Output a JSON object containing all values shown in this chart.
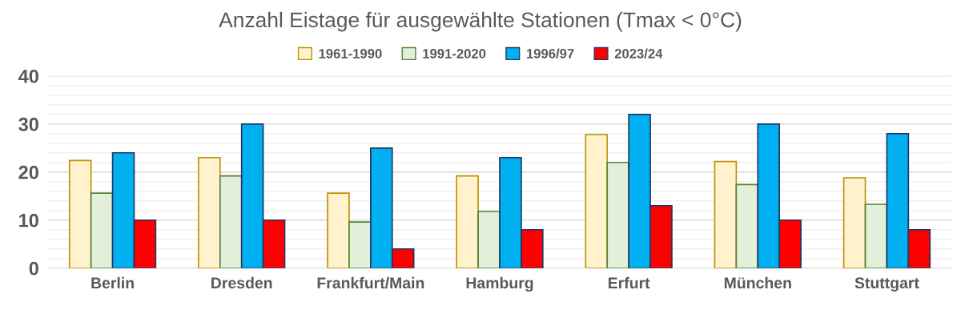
{
  "chart_data": {
    "type": "bar",
    "title": "Anzahl Eistage für ausgewählte Stationen (Tmax < 0°C)",
    "categories": [
      "Berlin",
      "Dresden",
      "Frankfurt/Main",
      "Hamburg",
      "Erfurt",
      "München",
      "Stuttgart"
    ],
    "series": [
      {
        "name": "1961-1990",
        "color": "#fff2cc",
        "values": [
          22.4,
          23.0,
          15.6,
          19.2,
          27.8,
          22.2,
          18.8
        ]
      },
      {
        "name": "1991-2020",
        "color": "#e2efda",
        "values": [
          15.6,
          19.2,
          9.6,
          11.8,
          22.0,
          17.4,
          13.3
        ]
      },
      {
        "name": "1996/97",
        "color": "#00b0f0",
        "values": [
          24,
          30,
          25,
          23,
          32,
          30,
          28
        ]
      },
      {
        "name": "2023/24",
        "color": "#ff0000",
        "values": [
          10,
          10,
          4,
          8,
          13,
          10,
          8
        ]
      }
    ],
    "ylim": [
      0,
      40
    ],
    "yticks": [
      0,
      {
        "value": 2,
        "label": null
      },
      {
        "value": 4,
        "label": null
      },
      {
        "value": 6,
        "label": null
      },
      {
        "value": 8,
        "label": null
      },
      10,
      {
        "value": 12,
        "label": null
      },
      {
        "value": 14,
        "label": null
      },
      {
        "value": 16,
        "label": null
      },
      {
        "value": 18,
        "label": null
      },
      20,
      {
        "value": 22,
        "label": null
      },
      {
        "value": 24,
        "label": null
      },
      {
        "value": 26,
        "label": null
      },
      {
        "value": 28,
        "label": null
      },
      30,
      {
        "value": 32,
        "label": null
      },
      {
        "value": 34,
        "label": null
      },
      {
        "value": 36,
        "label": null
      },
      {
        "value": 38,
        "label": null
      },
      40
    ],
    "grid": "y",
    "legend": "top"
  }
}
